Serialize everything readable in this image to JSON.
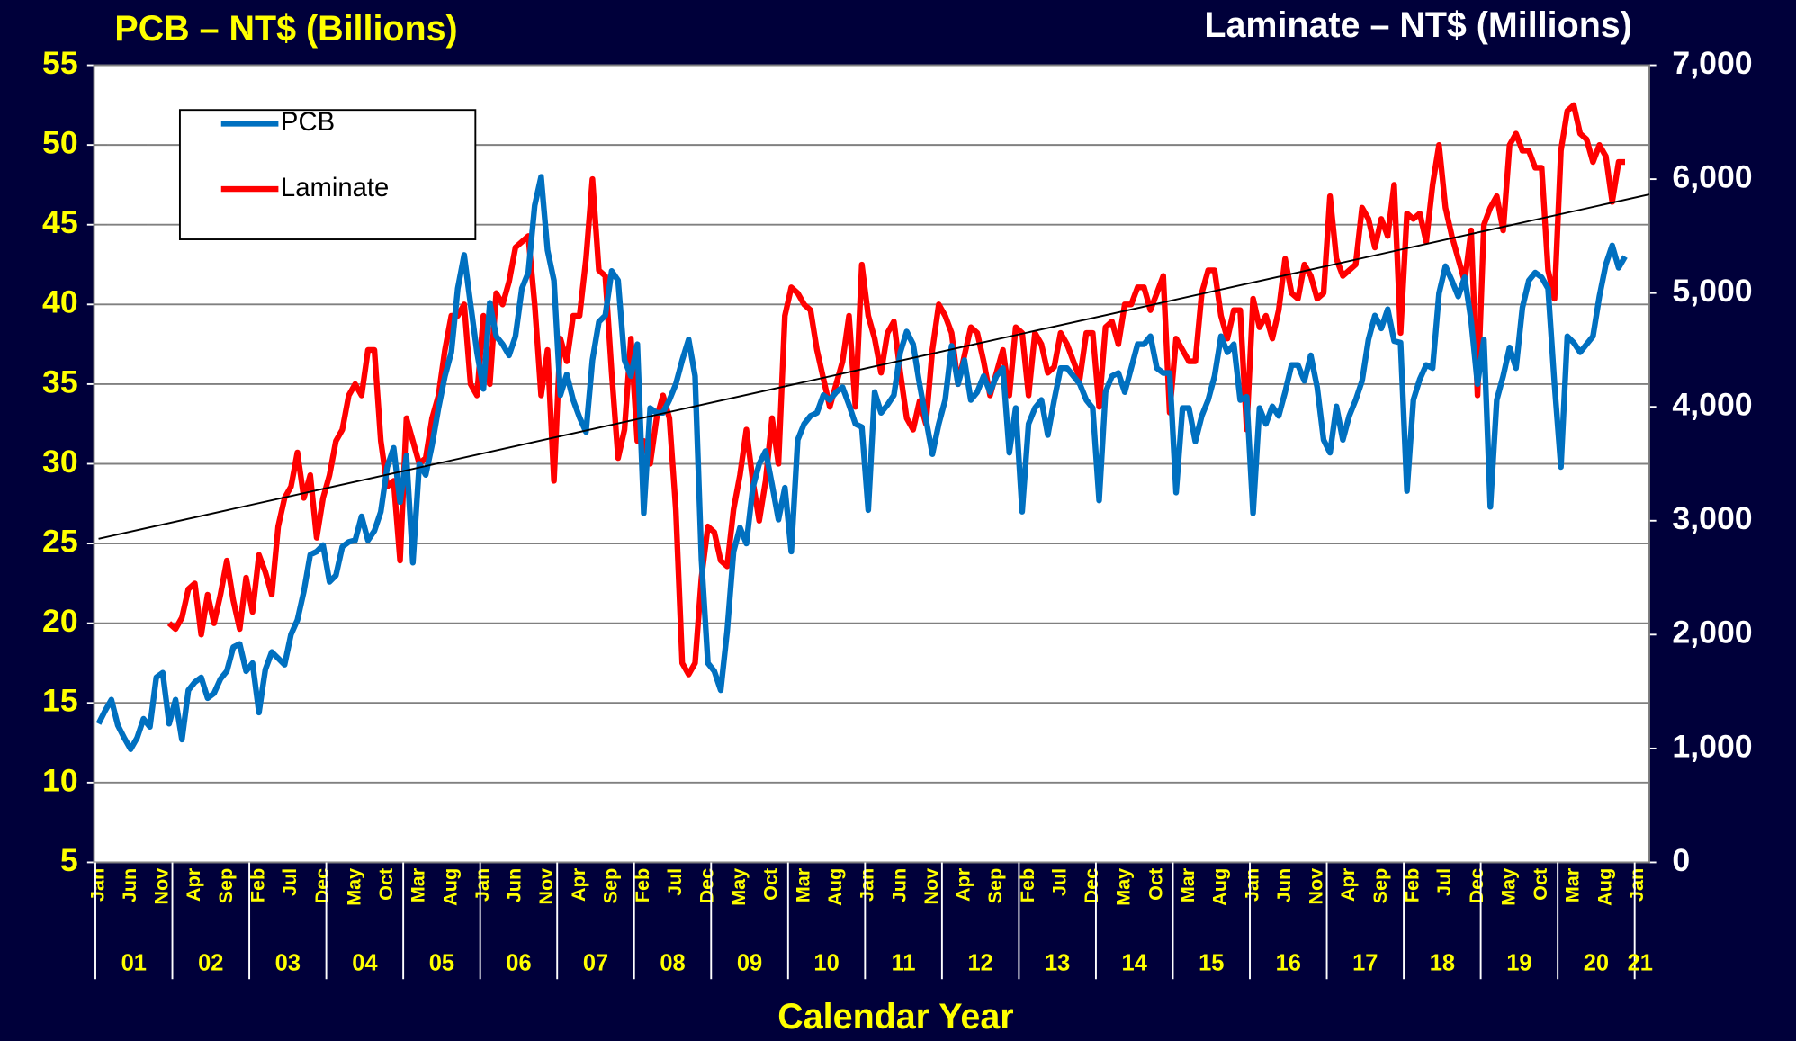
{
  "chart_data": {
    "type": "line",
    "title_left": "PCB – NT$ (Billions)",
    "title_right": "Laminate – NT$ (Millions)",
    "x_label": "Calendar Year",
    "categories": [
      "Jan",
      null,
      null,
      null,
      null,
      "Jun",
      null,
      null,
      null,
      null,
      "Nov",
      null,
      null,
      null,
      null,
      "Apr",
      null,
      null,
      null,
      null,
      "Sep",
      null,
      null,
      null,
      null,
      "Feb",
      null,
      null,
      null,
      null,
      "Jul",
      null,
      null,
      null,
      null,
      "Dec",
      null,
      null,
      null,
      null,
      "May",
      null,
      null,
      null,
      null,
      "Oct",
      null,
      null,
      null,
      null,
      "Mar",
      null,
      null,
      null,
      null,
      "Aug",
      null,
      null,
      null,
      null,
      "Jan",
      null,
      null,
      null,
      null,
      "Jun",
      null,
      null,
      null,
      null,
      "Nov",
      null,
      null,
      null,
      null,
      "Apr",
      null,
      null,
      null,
      null,
      "Sep",
      null,
      null,
      null,
      null,
      "Feb",
      null,
      null,
      null,
      null,
      "Jul",
      null,
      null,
      null,
      null,
      "Dec",
      null,
      null,
      null,
      null,
      "May",
      null,
      null,
      null,
      null,
      "Oct",
      null,
      null,
      null,
      null,
      "Mar",
      null,
      null,
      null,
      null,
      "Aug",
      null,
      null,
      null,
      null,
      "Jan",
      null,
      null,
      null,
      null,
      "Jun",
      null,
      null,
      null,
      null,
      "Nov",
      null,
      null,
      null,
      null,
      "Apr",
      null,
      null,
      null,
      null,
      "Sep",
      null,
      null,
      null,
      null,
      "Feb",
      null,
      null,
      null,
      null,
      "Jul",
      null,
      null,
      null,
      null,
      "Dec",
      null,
      null,
      null,
      null,
      "May",
      null,
      null,
      null,
      null,
      "Oct",
      null,
      null,
      null,
      null,
      "Mar",
      null,
      null,
      null,
      null,
      "Aug",
      null,
      null,
      null,
      null,
      "Jan",
      null,
      null,
      null,
      null,
      "Jun",
      null,
      null,
      null,
      null,
      "Nov",
      null,
      null,
      null,
      null,
      "Apr",
      null,
      null,
      null,
      null,
      "Sep",
      null,
      null,
      null,
      null,
      "Feb",
      null,
      null,
      null,
      null,
      "Jul",
      null,
      null,
      null,
      null,
      "Dec",
      null,
      null,
      null,
      null,
      "May",
      null,
      null,
      null,
      null,
      "Oct",
      null,
      null,
      null,
      null,
      "Mar",
      null,
      null,
      null,
      null,
      "Aug",
      null,
      null,
      null,
      null,
      "Jan"
    ],
    "years": [
      "01",
      "02",
      "03",
      "04",
      "05",
      "06",
      "07",
      "08",
      "09",
      "10",
      "11",
      "12",
      "13",
      "14",
      "15",
      "16",
      "17",
      "18",
      "19",
      "20",
      "21"
    ],
    "series": [
      {
        "name": "PCB",
        "color": "#0070c0",
        "axis": "y",
        "values": [
          13.7,
          14.5,
          15.2,
          13.6,
          12.8,
          12.1,
          12.8,
          14.0,
          13.5,
          16.6,
          16.9,
          13.7,
          15.2,
          12.7,
          15.8,
          16.3,
          16.6,
          15.3,
          15.6,
          16.5,
          17.0,
          18.5,
          18.7,
          17.0,
          17.5,
          14.4,
          17.1,
          18.2,
          17.8,
          17.4,
          19.3,
          20.2,
          22.0,
          24.3,
          24.5,
          24.9,
          22.6,
          23.0,
          24.8,
          25.1,
          25.2,
          26.7,
          25.2,
          25.8,
          27.0,
          29.8,
          31.0,
          27.6,
          30.5,
          23.8,
          30.0,
          29.3,
          31.2,
          33.5,
          35.5,
          37.0,
          41.0,
          43.1,
          40.0,
          37.0,
          34.7,
          40.1,
          38.0,
          37.5,
          36.8,
          38.0,
          41.0,
          42.0,
          46.2,
          48.0,
          43.4,
          41.5,
          34.3,
          35.6,
          34.0,
          32.9,
          32.0,
          36.5,
          38.9,
          39.3,
          42.1,
          41.5,
          36.5,
          35.5,
          37.5,
          26.9,
          33.5,
          33.2,
          33.2,
          34.0,
          35.0,
          36.5,
          37.8,
          35.5,
          24.0,
          17.5,
          17.0,
          15.8,
          19.5,
          24.5,
          26.0,
          25.0,
          28.5,
          30.0,
          30.8,
          28.7,
          26.5,
          28.5,
          24.5,
          31.5,
          32.5,
          33.0,
          33.2,
          34.3,
          34.0,
          34.5,
          34.8,
          33.7,
          32.5,
          32.3,
          27.1,
          34.5,
          33.2,
          33.7,
          34.3,
          37.0,
          38.3,
          37.5,
          35.0,
          32.8,
          30.6,
          32.5,
          34.0,
          37.4,
          35.0,
          36.5,
          34.0,
          34.5,
          35.5,
          34.5,
          35.5,
          36.0,
          30.7,
          33.5,
          27.0,
          32.5,
          33.5,
          34.0,
          31.8,
          34.0,
          36.0,
          36.0,
          35.5,
          35.0,
          34.0,
          33.5,
          27.7,
          34.5,
          35.5,
          35.7,
          34.5,
          36.0,
          37.5,
          37.5,
          38.0,
          36.0,
          35.7,
          35.7,
          28.2,
          33.5,
          33.5,
          31.4,
          33.0,
          34.0,
          35.5,
          38.0,
          37.0,
          37.5,
          34.0,
          34.2,
          26.9,
          33.5,
          32.5,
          33.6,
          33.0,
          34.5,
          36.2,
          36.2,
          35.2,
          36.8,
          34.8,
          31.5,
          30.7,
          33.6,
          31.5,
          33.0,
          34.0,
          35.2,
          37.8,
          39.3,
          38.5,
          39.7,
          37.7,
          37.6,
          28.3,
          34.0,
          35.3,
          36.2,
          36.0,
          40.7,
          42.4,
          41.5,
          40.5,
          41.7,
          39.0,
          35.0,
          37.8,
          27.3,
          34.0,
          35.5,
          37.3,
          36.0,
          39.8,
          41.5,
          42.0,
          41.7,
          41.0,
          35.0,
          29.8,
          38.0,
          37.6,
          37.0,
          37.5,
          38.0,
          40.5,
          42.5,
          43.7,
          42.3,
          43.0,
          null,
          null
        ]
      },
      {
        "name": "Laminate",
        "color": "#ff0000",
        "axis": "y2",
        "values": [
          null,
          null,
          null,
          null,
          null,
          null,
          null,
          null,
          null,
          null,
          null,
          2100,
          2050,
          2150,
          2400,
          2450,
          2000,
          2350,
          2100,
          2350,
          2650,
          2300,
          2050,
          2500,
          2200,
          2700,
          2550,
          2350,
          2950,
          3200,
          3300,
          3600,
          3200,
          3400,
          2850,
          3200,
          3400,
          3700,
          3800,
          4100,
          4200,
          4100,
          4500,
          4500,
          3700,
          3300,
          3350,
          2650,
          3900,
          3700,
          3500,
          3550,
          3900,
          4100,
          4500,
          4800,
          4800,
          4900,
          4200,
          4100,
          4800,
          4200,
          5000,
          4900,
          5100,
          5400,
          5450,
          5500,
          4900,
          4100,
          4500,
          3350,
          4600,
          4400,
          4800,
          4800,
          5300,
          6000,
          5200,
          5150,
          4300,
          3550,
          3800,
          4600,
          3700,
          3700,
          3500,
          3900,
          4100,
          3900,
          3100,
          1750,
          1650,
          1750,
          2500,
          2950,
          2900,
          2650,
          2600,
          3100,
          3400,
          3800,
          3350,
          3000,
          3350,
          3900,
          3500,
          4800,
          5050,
          5000,
          4900,
          4850,
          4500,
          4250,
          4000,
          4200,
          4400,
          4800,
          4000,
          5250,
          4800,
          4600,
          4300,
          4650,
          4750,
          4300,
          3900,
          3800,
          4050,
          3850,
          4500,
          4900,
          4800,
          4650,
          4200,
          4450,
          4700,
          4650,
          4400,
          4100,
          4300,
          4500,
          4100,
          4700,
          4650,
          4100,
          4650,
          4550,
          4300,
          4350,
          4650,
          4550,
          4400,
          4250,
          4650,
          4650,
          4000,
          4700,
          4750,
          4550,
          4900,
          4900,
          5050,
          5050,
          4850,
          5000,
          5150,
          3950,
          4600,
          4500,
          4400,
          4400,
          5000,
          5200,
          5200,
          4800,
          4600,
          4850,
          4850,
          3800,
          4950,
          4700,
          4800,
          4600,
          4850,
          5300,
          5000,
          4950,
          5250,
          5150,
          4950,
          5000,
          5850,
          5300,
          5150,
          5200,
          5250,
          5750,
          5650,
          5400,
          5650,
          5500,
          5950,
          4650,
          5700,
          5650,
          5700,
          5450,
          5950,
          6300,
          5750,
          5500,
          5300,
          5100,
          5550,
          4100,
          5600,
          5750,
          5850,
          5550,
          6300,
          6400,
          6250,
          6250,
          6100,
          6100,
          5200,
          4950,
          6250,
          6600,
          6650,
          6400,
          6350,
          6150,
          6300,
          6200,
          5800,
          6150,
          6150,
          null,
          null
        ]
      }
    ],
    "trendline": [
      25.3,
      46.9
    ],
    "trendline_color": "#000000",
    "ylim": [
      5,
      55
    ],
    "yticks": [
      5,
      10,
      15,
      20,
      25,
      30,
      35,
      40,
      45,
      50,
      55
    ],
    "y2lim": [
      0,
      7000
    ],
    "y2ticks": [
      0,
      {
        "value": 1000,
        "label": "1,000"
      },
      {
        "value": 2000,
        "label": "2,000"
      },
      {
        "value": 3000,
        "label": "3,000"
      },
      {
        "value": 4000,
        "label": "4,000"
      },
      {
        "value": 5000,
        "label": "5,000"
      },
      {
        "value": 6000,
        "label": "6,000"
      },
      {
        "value": 7000,
        "label": "7,000"
      }
    ],
    "grid": true,
    "legend": "upper left"
  }
}
